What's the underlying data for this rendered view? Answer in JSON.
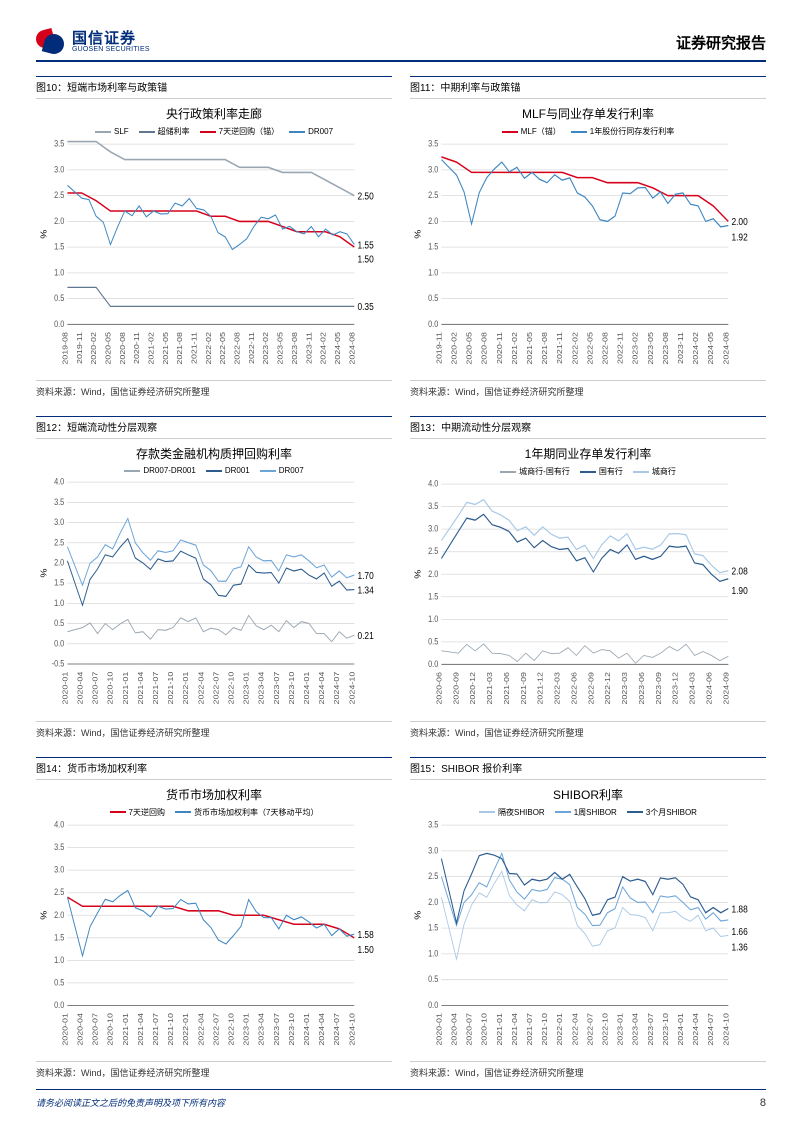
{
  "header": {
    "brand_cn": "国信证券",
    "brand_en": "GUOSEN SECURITIES",
    "report_title": "证券研究报告",
    "logo_colors": {
      "red": "#d7001b",
      "blue": "#002c7a"
    }
  },
  "footer": {
    "disclaimer": "请务必阅读正文之后的免责声明及项下所有内容",
    "page": "8"
  },
  "common": {
    "source_label": "资料来源：Wind，国信证券经济研究所整理",
    "y_unit": "%",
    "grid_color": "#d9d9d9",
    "axis_color": "#808080",
    "tick_fontsize": 7
  },
  "charts": [
    {
      "caption": "图10：短端市场利率与政策锚",
      "title": "央行政策利率走廊",
      "type": "line",
      "ylim": [
        0,
        3.5
      ],
      "ytick_step": 0.5,
      "x_labels": [
        "2019-08",
        "2019-11",
        "2020-02",
        "2020-05",
        "2020-08",
        "2020-11",
        "2021-02",
        "2021-05",
        "2021-08",
        "2021-11",
        "2022-02",
        "2022-05",
        "2022-08",
        "2022-11",
        "2023-02",
        "2023-05",
        "2023-08",
        "2023-11",
        "2024-02",
        "2024-05",
        "2024-08"
      ],
      "legend": [
        {
          "label": "SLF",
          "color": "#9aa7b3"
        },
        {
          "label": "超储利率",
          "color": "#5f7890"
        },
        {
          "label": "7天逆回购（锚）",
          "color": "#d7001b"
        },
        {
          "label": "DR007",
          "color": "#3e87c3"
        }
      ],
      "series": [
        {
          "color": "#9aa7b3",
          "width": 1.3,
          "values": [
            3.55,
            3.55,
            3.55,
            3.35,
            3.2,
            3.2,
            3.2,
            3.2,
            3.2,
            3.2,
            3.2,
            3.2,
            3.05,
            3.05,
            3.05,
            2.95,
            2.95,
            2.95,
            2.8,
            2.65,
            2.5
          ]
        },
        {
          "color": "#5f7890",
          "width": 1.0,
          "values": [
            0.72,
            0.72,
            0.72,
            0.35,
            0.35,
            0.35,
            0.35,
            0.35,
            0.35,
            0.35,
            0.35,
            0.35,
            0.35,
            0.35,
            0.35,
            0.35,
            0.35,
            0.35,
            0.35,
            0.35,
            0.35
          ]
        },
        {
          "color": "#d7001b",
          "width": 1.2,
          "values": [
            2.55,
            2.55,
            2.4,
            2.2,
            2.2,
            2.2,
            2.2,
            2.2,
            2.2,
            2.2,
            2.1,
            2.1,
            2.0,
            2.0,
            2.0,
            1.9,
            1.8,
            1.8,
            1.8,
            1.7,
            1.5
          ]
        },
        {
          "color": "#3e87c3",
          "width": 0.9,
          "noisy": true,
          "values": [
            2.7,
            2.45,
            2.1,
            1.55,
            2.2,
            2.3,
            2.2,
            2.15,
            2.3,
            2.25,
            2.1,
            1.7,
            1.55,
            1.9,
            2.05,
            1.85,
            1.8,
            1.9,
            1.85,
            1.8,
            1.55
          ]
        }
      ],
      "end_labels": [
        {
          "v": 2.5,
          "c": "#9aa7b3"
        },
        {
          "v": 1.55,
          "c": "#3e87c3"
        },
        {
          "v": 1.5,
          "c": "#d7001b"
        },
        {
          "v": 0.35,
          "c": "#5f7890"
        }
      ]
    },
    {
      "caption": "图11：中期利率与政策锚",
      "title": "MLF与同业存单发行利率",
      "type": "line",
      "ylim": [
        0,
        3.5
      ],
      "ytick_step": 0.5,
      "x_labels": [
        "2019-11",
        "2020-02",
        "2020-05",
        "2020-08",
        "2020-11",
        "2021-02",
        "2021-05",
        "2021-08",
        "2021-11",
        "2022-02",
        "2022-05",
        "2022-08",
        "2022-11",
        "2023-02",
        "2023-05",
        "2023-08",
        "2023-11",
        "2024-02",
        "2024-05",
        "2024-08"
      ],
      "legend": [
        {
          "label": "MLF（锚）",
          "color": "#d7001b"
        },
        {
          "label": "1年股份行同存发行利率",
          "color": "#3e87c3"
        }
      ],
      "series": [
        {
          "color": "#d7001b",
          "width": 1.2,
          "values": [
            3.25,
            3.15,
            2.95,
            2.95,
            2.95,
            2.95,
            2.95,
            2.95,
            2.95,
            2.85,
            2.85,
            2.75,
            2.75,
            2.75,
            2.65,
            2.5,
            2.5,
            2.5,
            2.3,
            2.0
          ]
        },
        {
          "color": "#3e87c3",
          "width": 1.0,
          "noisy": true,
          "values": [
            3.2,
            2.9,
            1.95,
            2.85,
            3.15,
            3.05,
            2.95,
            2.75,
            2.8,
            2.55,
            2.3,
            2.0,
            2.55,
            2.65,
            2.45,
            2.35,
            2.55,
            2.3,
            2.05,
            1.92
          ]
        }
      ],
      "end_labels": [
        {
          "v": 2.0,
          "c": "#d7001b"
        },
        {
          "v": 1.92,
          "c": "#3e87c3"
        }
      ]
    },
    {
      "caption": "图12：短端流动性分层观察",
      "title": "存款类金融机构质押回购利率",
      "type": "line",
      "ylim": [
        -0.5,
        4.0
      ],
      "ytick_step": 0.5,
      "x_labels": [
        "2020-01",
        "2020-04",
        "2020-07",
        "2020-10",
        "2021-01",
        "2021-04",
        "2021-07",
        "2021-10",
        "2022-01",
        "2022-04",
        "2022-07",
        "2022-10",
        "2023-01",
        "2023-04",
        "2023-07",
        "2023-10",
        "2024-01",
        "2024-04",
        "2024-07",
        "2024-10"
      ],
      "legend": [
        {
          "label": "DR007-DR001",
          "color": "#9aa7b3"
        },
        {
          "label": "DR001",
          "color": "#2d5c8f"
        },
        {
          "label": "DR007",
          "color": "#6da5d8"
        }
      ],
      "series": [
        {
          "color": "#9aa7b3",
          "width": 0.8,
          "noisy": true,
          "values": [
            0.3,
            0.4,
            0.25,
            0.35,
            0.6,
            0.3,
            0.35,
            0.4,
            0.55,
            0.3,
            0.35,
            0.4,
            0.7,
            0.35,
            0.3,
            0.4,
            0.5,
            0.25,
            0.3,
            0.21
          ]
        },
        {
          "color": "#2d5c8f",
          "width": 0.9,
          "noisy": true,
          "values": [
            2.05,
            0.95,
            1.85,
            2.15,
            2.6,
            2.0,
            2.1,
            2.05,
            2.2,
            1.6,
            1.2,
            1.45,
            1.95,
            1.75,
            1.5,
            1.8,
            1.7,
            1.75,
            1.55,
            1.34
          ]
        },
        {
          "color": "#6da5d8",
          "width": 0.9,
          "noisy": true,
          "values": [
            2.4,
            1.45,
            2.15,
            2.35,
            3.1,
            2.25,
            2.3,
            2.3,
            2.5,
            1.95,
            1.55,
            1.85,
            2.4,
            2.05,
            1.8,
            2.15,
            2.05,
            1.95,
            1.8,
            1.7
          ]
        }
      ],
      "end_labels": [
        {
          "v": 1.7,
          "c": "#6da5d8"
        },
        {
          "v": 1.34,
          "c": "#2d5c8f"
        },
        {
          "v": 0.21,
          "c": "#9aa7b3"
        }
      ]
    },
    {
      "caption": "图13：中期流动性分层观察",
      "title": "1年期同业存单发行利率",
      "type": "line",
      "ylim": [
        0,
        4.0
      ],
      "ytick_step": 0.5,
      "x_labels": [
        "2020-06",
        "2020-09",
        "2020-12",
        "2021-03",
        "2021-06",
        "2021-09",
        "2021-12",
        "2022-03",
        "2022-06",
        "2022-09",
        "2022-12",
        "2023-03",
        "2023-06",
        "2023-09",
        "2023-12",
        "2024-03",
        "2024-06",
        "2024-09"
      ],
      "legend": [
        {
          "label": "城商行-国有行",
          "color": "#9aa7b3"
        },
        {
          "label": "国有行",
          "color": "#2d5c8f"
        },
        {
          "label": "城商行",
          "color": "#a8c8e7"
        }
      ],
      "series": [
        {
          "color": "#9aa7b3",
          "width": 0.7,
          "noisy": true,
          "values": [
            0.3,
            0.25,
            0.3,
            0.25,
            0.2,
            0.25,
            0.3,
            0.25,
            0.2,
            0.25,
            0.3,
            0.25,
            0.2,
            0.25,
            0.3,
            0.2,
            0.2,
            0.18
          ]
        },
        {
          "color": "#2d5c8f",
          "width": 1.0,
          "noisy": true,
          "values": [
            2.35,
            2.95,
            3.2,
            3.1,
            2.95,
            2.8,
            2.75,
            2.55,
            2.3,
            2.05,
            2.55,
            2.65,
            2.4,
            2.4,
            2.6,
            2.25,
            2.0,
            1.9
          ]
        },
        {
          "color": "#a8c8e7",
          "width": 1.0,
          "noisy": true,
          "values": [
            2.75,
            3.3,
            3.55,
            3.4,
            3.2,
            3.05,
            3.05,
            2.8,
            2.55,
            2.35,
            2.85,
            2.9,
            2.6,
            2.65,
            2.9,
            2.45,
            2.2,
            2.08
          ]
        }
      ],
      "end_labels": [
        {
          "v": 2.08,
          "c": "#a8c8e7"
        },
        {
          "v": 1.9,
          "c": "#2d5c8f"
        }
      ]
    },
    {
      "caption": "图14：货币市场加权利率",
      "title": "货币市场加权利率",
      "type": "line",
      "ylim": [
        0,
        4.0
      ],
      "ytick_step": 0.5,
      "x_labels": [
        "2020-01",
        "2020-04",
        "2020-07",
        "2020-10",
        "2021-01",
        "2021-04",
        "2021-07",
        "2021-10",
        "2022-01",
        "2022-04",
        "2022-07",
        "2022-10",
        "2023-01",
        "2023-04",
        "2023-07",
        "2023-10",
        "2024-01",
        "2024-04",
        "2024-07",
        "2024-10"
      ],
      "legend": [
        {
          "label": "7天逆回购",
          "color": "#d7001b"
        },
        {
          "label": "货币市场加权利率（7天移动平均）",
          "color": "#3e87c3"
        }
      ],
      "series": [
        {
          "color": "#d7001b",
          "width": 1.2,
          "values": [
            2.4,
            2.2,
            2.2,
            2.2,
            2.2,
            2.2,
            2.2,
            2.2,
            2.1,
            2.1,
            2.1,
            2.0,
            2.0,
            2.0,
            1.9,
            1.8,
            1.8,
            1.8,
            1.7,
            1.5
          ]
        },
        {
          "color": "#3e87c3",
          "width": 0.9,
          "noisy": true,
          "values": [
            2.4,
            1.1,
            2.05,
            2.3,
            2.55,
            2.1,
            2.2,
            2.15,
            2.25,
            1.9,
            1.45,
            1.55,
            2.35,
            1.95,
            1.7,
            1.9,
            1.85,
            1.8,
            1.7,
            1.58
          ]
        }
      ],
      "end_labels": [
        {
          "v": 1.58,
          "c": "#3e87c3"
        },
        {
          "v": 1.5,
          "c": "#d7001b"
        }
      ]
    },
    {
      "caption": "图15：SHIBOR 报价利率",
      "title": "SHIBOR利率",
      "type": "line",
      "ylim": [
        0,
        3.5
      ],
      "ytick_step": 0.5,
      "x_labels": [
        "2020-01",
        "2020-04",
        "2020-07",
        "2020-10",
        "2021-01",
        "2021-04",
        "2021-07",
        "2021-10",
        "2022-01",
        "2022-04",
        "2022-07",
        "2022-10",
        "2023-01",
        "2023-04",
        "2023-07",
        "2023-10",
        "2024-01",
        "2024-04",
        "2024-07",
        "2024-10"
      ],
      "legend": [
        {
          "label": "隔夜SHIBOR",
          "color": "#a8c8e7"
        },
        {
          "label": "1周SHIBOR",
          "color": "#6da5d8"
        },
        {
          "label": "3个月SHIBOR",
          "color": "#2d5c8f"
        }
      ],
      "series": [
        {
          "color": "#a8c8e7",
          "width": 0.8,
          "noisy": true,
          "values": [
            2.1,
            0.9,
            1.95,
            2.1,
            2.6,
            1.95,
            2.05,
            2.0,
            2.15,
            1.55,
            1.15,
            1.45,
            1.9,
            1.75,
            1.45,
            1.8,
            1.7,
            1.75,
            1.5,
            1.36
          ]
        },
        {
          "color": "#6da5d8",
          "width": 0.9,
          "noisy": true,
          "values": [
            2.5,
            1.55,
            2.15,
            2.3,
            2.95,
            2.2,
            2.25,
            2.25,
            2.45,
            1.9,
            1.55,
            1.8,
            2.3,
            2.0,
            1.8,
            2.1,
            2.0,
            1.9,
            1.8,
            1.66
          ]
        },
        {
          "color": "#2d5c8f",
          "width": 1.0,
          "noisy": true,
          "values": [
            2.85,
            1.6,
            2.55,
            2.95,
            2.85,
            2.55,
            2.45,
            2.45,
            2.45,
            2.3,
            1.75,
            2.05,
            2.5,
            2.45,
            2.15,
            2.45,
            2.35,
            2.05,
            1.9,
            1.88
          ]
        }
      ],
      "end_labels": [
        {
          "v": 1.88,
          "c": "#2d5c8f"
        },
        {
          "v": 1.66,
          "c": "#6da5d8"
        },
        {
          "v": 1.36,
          "c": "#a8c8e7"
        }
      ]
    }
  ]
}
